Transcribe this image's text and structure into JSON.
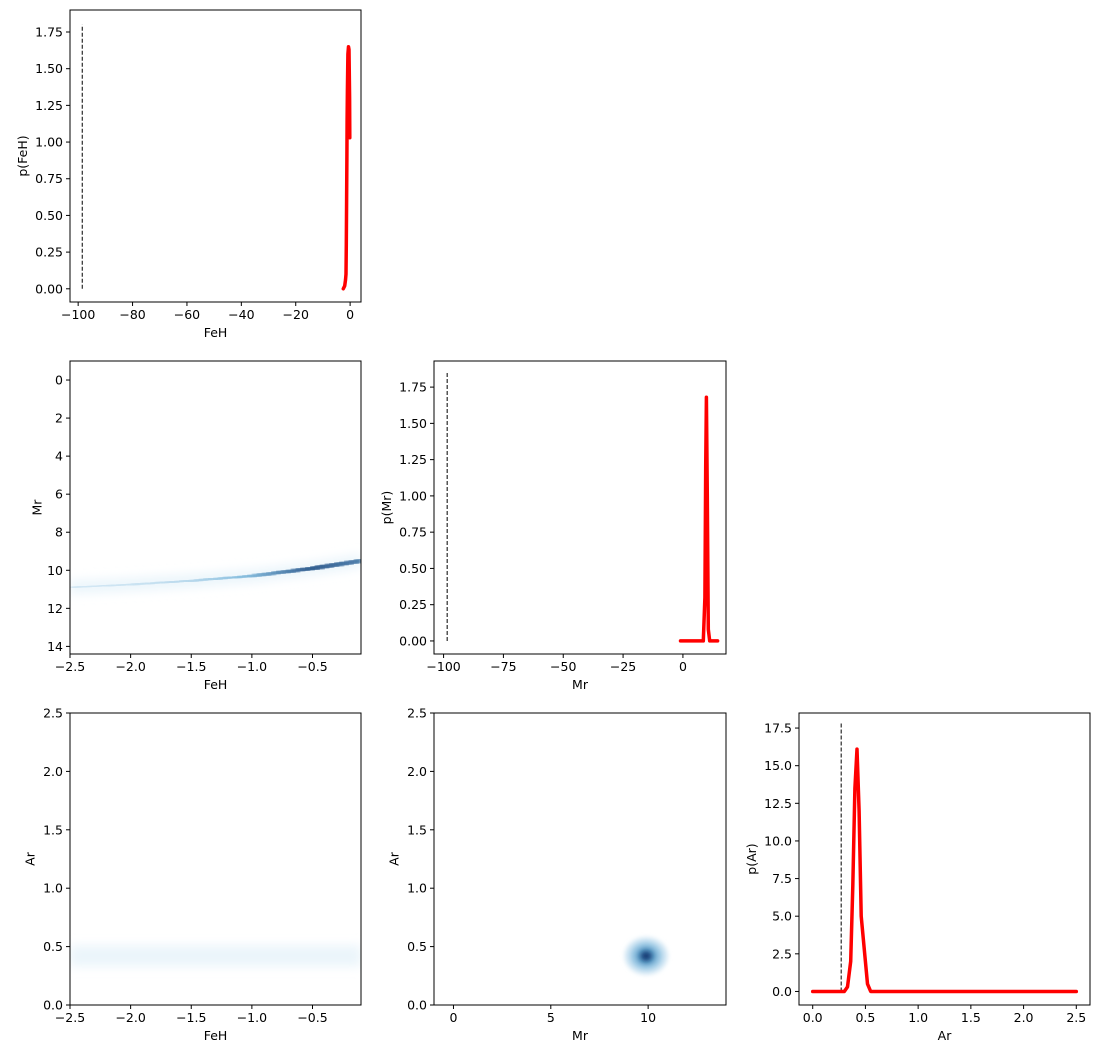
{
  "chart_data": [
    {
      "id": "p_feh",
      "type": "line",
      "xlabel": "FeH",
      "ylabel": "p(FeH)",
      "xlim": [
        -103,
        4
      ],
      "ylim": [
        -0.09,
        1.9
      ],
      "xticks": [
        -100,
        -80,
        -60,
        -40,
        -20,
        0
      ],
      "xtick_labels": [
        "−100",
        "−80",
        "−60",
        "−40",
        "−20",
        "0"
      ],
      "yticks": [
        0,
        0.25,
        0.5,
        0.75,
        1.0,
        1.25,
        1.5,
        1.75
      ],
      "ytick_labels": [
        "0.00",
        "0.25",
        "0.50",
        "0.75",
        "1.00",
        "1.25",
        "1.50",
        "1.75"
      ],
      "dashed_vline": {
        "x": -98.5,
        "y": [
          0,
          1.8
        ]
      },
      "series": [
        {
          "color": "#ff0000",
          "x": [
            -2.5,
            -2.0,
            -1.7,
            -1.5,
            -1.4,
            -1.3,
            -1.2,
            -1.1,
            -1.0,
            -0.9,
            -0.8,
            -0.6,
            -0.4,
            -0.2,
            -0.1
          ],
          "y": [
            0.0,
            0.02,
            0.06,
            0.1,
            0.3,
            0.6,
            0.9,
            1.15,
            1.35,
            1.5,
            1.6,
            1.65,
            1.63,
            1.3,
            1.03
          ]
        }
      ]
    },
    {
      "id": "feh_mr",
      "type": "heatmap",
      "xlabel": "FeH",
      "ylabel": "Mr",
      "xlim": [
        -2.5,
        -0.1
      ],
      "ylim": [
        14.4,
        -1.0
      ],
      "xticks": [
        -2.5,
        -2.0,
        -1.5,
        -1.0,
        -0.5
      ],
      "xtick_labels": [
        "−2.5",
        "−2.0",
        "−1.5",
        "−1.0",
        "−0.5"
      ],
      "yticks": [
        0,
        2,
        4,
        6,
        8,
        10,
        12,
        14
      ],
      "ytick_labels": [
        "0",
        "2",
        "4",
        "6",
        "8",
        "10",
        "12",
        "14"
      ],
      "ridge": {
        "x": [
          -2.5,
          -2.0,
          -1.5,
          -1.0,
          -0.5,
          -0.1
        ],
        "y": [
          10.9,
          10.75,
          10.55,
          10.3,
          9.9,
          9.5
        ],
        "intensity": [
          0.06,
          0.1,
          0.2,
          0.45,
          0.85,
          0.7
        ]
      }
    },
    {
      "id": "p_mr",
      "type": "line",
      "xlabel": "Mr",
      "ylabel": "p(Mr)",
      "xlim": [
        -104,
        18
      ],
      "ylim": [
        -0.09,
        1.93
      ],
      "xticks": [
        -100,
        -75,
        -50,
        -25,
        0
      ],
      "xtick_labels": [
        "−100",
        "−75",
        "−50",
        "−25",
        "0"
      ],
      "yticks": [
        0,
        0.25,
        0.5,
        0.75,
        1.0,
        1.25,
        1.5,
        1.75
      ],
      "ytick_labels": [
        "0.00",
        "0.25",
        "0.50",
        "0.75",
        "1.00",
        "1.25",
        "1.50",
        "1.75"
      ],
      "dashed_vline": {
        "x": -98.5,
        "y": [
          0,
          1.85
        ]
      },
      "series": [
        {
          "color": "#ff0000",
          "x": [
            -1.0,
            8.5,
            9.2,
            9.5,
            9.8,
            10.2,
            10.6,
            11.2,
            14.5
          ],
          "y": [
            0.0,
            0.0,
            0.3,
            1.2,
            1.68,
            1.0,
            0.08,
            0.0,
            0.0
          ]
        }
      ]
    },
    {
      "id": "feh_ar",
      "type": "heatmap",
      "xlabel": "FeH",
      "ylabel": "Ar",
      "xlim": [
        -2.5,
        -0.1
      ],
      "ylim": [
        0.0,
        2.5
      ],
      "xticks": [
        -2.5,
        -2.0,
        -1.5,
        -1.0,
        -0.5
      ],
      "xtick_labels": [
        "−2.5",
        "−2.0",
        "−1.5",
        "−1.0",
        "−0.5"
      ],
      "yticks": [
        0.0,
        0.5,
        1.0,
        1.5,
        2.0,
        2.5
      ],
      "ytick_labels": [
        "0.0",
        "0.5",
        "1.0",
        "1.5",
        "2.0",
        "2.5"
      ],
      "ridge": {
        "x": [
          -2.5,
          -2.0,
          -1.5,
          -1.0,
          -0.5,
          -0.1
        ],
        "y": [
          0.42,
          0.42,
          0.42,
          0.42,
          0.42,
          0.42
        ],
        "intensity": [
          0.05,
          0.1,
          0.15,
          0.4,
          0.85,
          0.9
        ]
      }
    },
    {
      "id": "mr_ar",
      "type": "heatmap",
      "xlabel": "Mr",
      "ylabel": "Ar",
      "xlim": [
        -1.0,
        14.0
      ],
      "ylim": [
        0.0,
        2.5
      ],
      "xticks": [
        0,
        5,
        10
      ],
      "xtick_labels": [
        "0",
        "5",
        "10"
      ],
      "yticks": [
        0.0,
        0.5,
        1.0,
        1.5,
        2.0,
        2.5
      ],
      "ytick_labels": [
        "0.0",
        "0.5",
        "1.0",
        "1.5",
        "2.0",
        "2.5"
      ],
      "blob": {
        "x": 9.9,
        "y": 0.42,
        "sx": 0.5,
        "sy": 0.06
      }
    },
    {
      "id": "p_ar",
      "type": "line",
      "xlabel": "Ar",
      "ylabel": "p(Ar)",
      "xlim": [
        -0.13,
        2.63
      ],
      "ylim": [
        -0.9,
        18.5
      ],
      "xticks": [
        0.0,
        0.5,
        1.0,
        1.5,
        2.0,
        2.5
      ],
      "xtick_labels": [
        "0.0",
        "0.5",
        "1.0",
        "1.5",
        "2.0",
        "2.5"
      ],
      "yticks": [
        0,
        2.5,
        5,
        7.5,
        10,
        12.5,
        15,
        17.5
      ],
      "ytick_labels": [
        "0.0",
        "2.5",
        "5.0",
        "7.5",
        "10.0",
        "12.5",
        "15.0",
        "17.5"
      ],
      "dashed_vline": {
        "x": 0.27,
        "y": [
          0,
          17.8
        ]
      },
      "series": [
        {
          "color": "#ff0000",
          "x": [
            0.0,
            0.3,
            0.33,
            0.36,
            0.38,
            0.4,
            0.42,
            0.44,
            0.46,
            0.48,
            0.5,
            0.52,
            0.55,
            2.5
          ],
          "y": [
            0.0,
            0.0,
            0.3,
            2.0,
            7.0,
            13.5,
            16.1,
            12.0,
            5.0,
            3.5,
            2.0,
            0.5,
            0.0,
            0.0
          ]
        }
      ]
    }
  ]
}
